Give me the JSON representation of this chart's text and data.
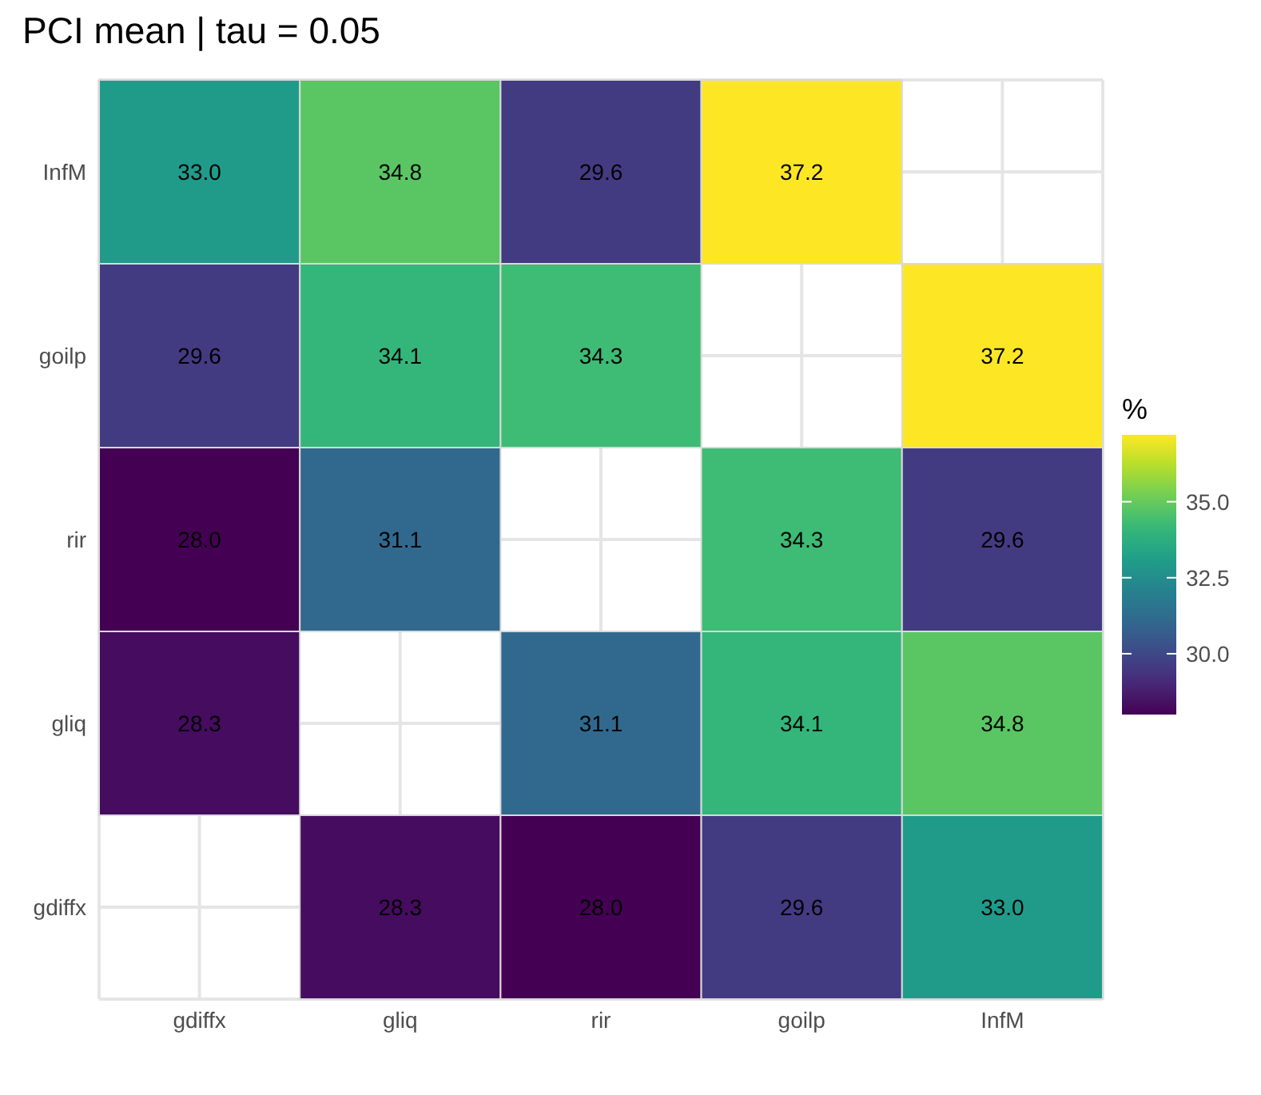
{
  "chart_data": {
    "type": "heatmap",
    "title": "PCI mean | tau = 0.05",
    "clabel": "%",
    "categories": [
      "gdiffx",
      "gliq",
      "rir",
      "goilp",
      "InfM"
    ],
    "y_categories": [
      "InfM",
      "goilp",
      "rir",
      "gliq",
      "gdiffx"
    ],
    "cells": [
      [
        33.0,
        34.8,
        29.6,
        37.2,
        null
      ],
      [
        29.6,
        34.1,
        34.3,
        null,
        37.2
      ],
      [
        28.0,
        31.1,
        null,
        34.3,
        29.6
      ],
      [
        28.3,
        null,
        31.1,
        34.1,
        34.8
      ],
      [
        null,
        28.3,
        28.0,
        29.6,
        33.0
      ]
    ],
    "cell_labels": [
      [
        "33.0",
        "34.8",
        "29.6",
        "37.2",
        null
      ],
      [
        "29.6",
        "34.1",
        "34.3",
        null,
        "37.2"
      ],
      [
        "28.0",
        "31.1",
        null,
        "34.3",
        "29.6"
      ],
      [
        "28.3",
        null,
        "31.1",
        "34.1",
        "34.8"
      ],
      [
        null,
        "28.3",
        "28.0",
        "29.6",
        "33.0"
      ]
    ],
    "clim": [
      28.0,
      37.2
    ],
    "cticks": [
      {
        "value": 30,
        "label": "30.0"
      },
      {
        "value": 32.5,
        "label": "32.5"
      },
      {
        "value": 35,
        "label": "35.0"
      }
    ],
    "grid": true
  }
}
